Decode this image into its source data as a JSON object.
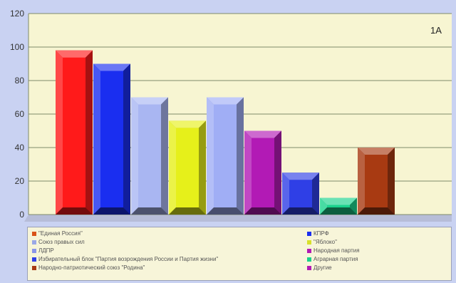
{
  "chart_data": {
    "type": "bar",
    "panel_label": "1A",
    "ylim": [
      0,
      120
    ],
    "y_ticks": [
      0,
      20,
      40,
      60,
      80,
      100,
      120
    ],
    "grid": true,
    "legend_position": "bottom",
    "bars": [
      {
        "value": 98,
        "color": "#ff1a1a"
      },
      {
        "value": 90,
        "color": "#1a2ef0"
      },
      {
        "value": 70,
        "color": "#a9b6f2"
      },
      {
        "value": 56,
        "color": "#e6f01a"
      },
      {
        "value": 70,
        "color": "#a0aef5"
      },
      {
        "value": 50,
        "color": "#b21ab5"
      },
      {
        "value": 25,
        "color": "#2f3fe6"
      },
      {
        "value": 10,
        "color": "#1ad28c"
      },
      {
        "value": 40,
        "color": "#a83a12"
      }
    ],
    "legend": [
      {
        "label": "\"Единая Россия\"",
        "color": "#d9531a"
      },
      {
        "label": "КПРФ",
        "color": "#1a2ef0"
      },
      {
        "label": "Союз правых сил",
        "color": "#9aa8e6"
      },
      {
        "label": "\"Яблоко\"",
        "color": "#d8e02a"
      },
      {
        "label": "ЛДПР",
        "color": "#8a95e8"
      },
      {
        "label": "Народная партия",
        "color": "#b21ab5"
      },
      {
        "label": "Избирательный блок \"Партия возрождения России и Партия жизни\"",
        "color": "#2f3fe6"
      },
      {
        "label": "Аграрная партия",
        "color": "#1ad28c"
      },
      {
        "label": "Народно-патриотический союз \"Родина\"",
        "color": "#a83a12"
      },
      {
        "label": "Другие",
        "color": "#b21ab5"
      }
    ]
  }
}
